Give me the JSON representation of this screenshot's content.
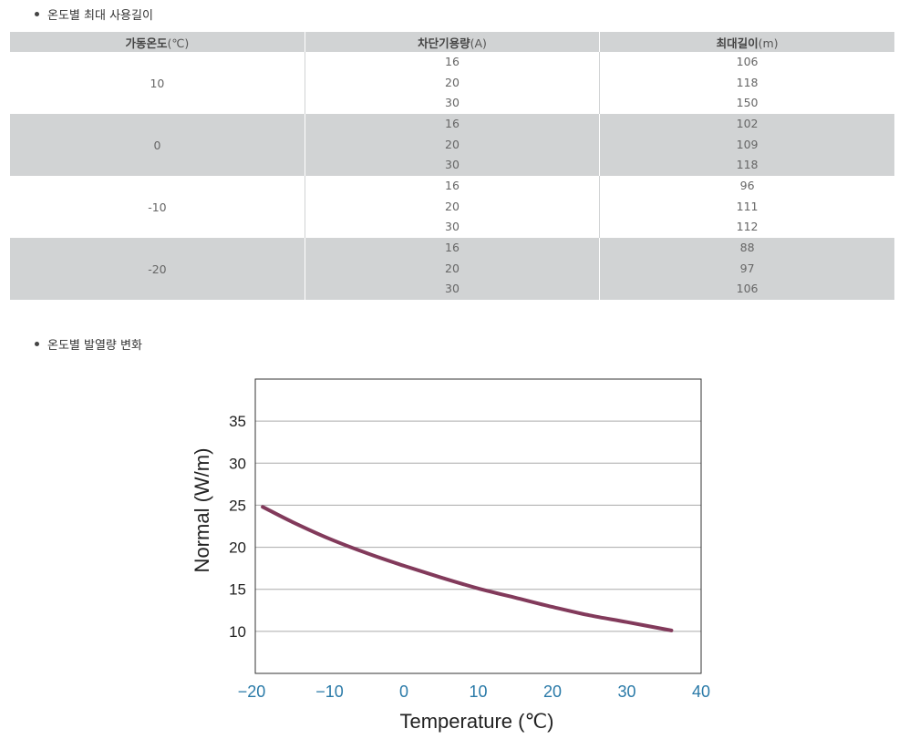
{
  "table_section": {
    "title": "온도별 최대 사용길이",
    "headers": [
      {
        "label": "가동온도",
        "unit": "(℃)"
      },
      {
        "label": "차단기용량",
        "unit": "(A)"
      },
      {
        "label": "최대길이",
        "unit": "(m)"
      }
    ],
    "groups": [
      {
        "temp": "10",
        "capacities": [
          "16",
          "20",
          "30"
        ],
        "lengths": [
          "106",
          "118",
          "150"
        ]
      },
      {
        "temp": "0",
        "capacities": [
          "16",
          "20",
          "30"
        ],
        "lengths": [
          "102",
          "109",
          "118"
        ]
      },
      {
        "temp": "-10",
        "capacities": [
          "16",
          "20",
          "30"
        ],
        "lengths": [
          "96",
          "111",
          "112"
        ]
      },
      {
        "temp": "-20",
        "capacities": [
          "16",
          "20",
          "30"
        ],
        "lengths": [
          "88",
          "97",
          "106"
        ]
      }
    ]
  },
  "chart_section": {
    "title": "온도별 발열량 변화"
  },
  "chart_data": {
    "type": "line",
    "title": "",
    "xlabel": "Temperature (℃)",
    "ylabel": "Normal (W/m)",
    "xlim": [
      -20,
      40
    ],
    "ylim": [
      5,
      40
    ],
    "xticks": [
      "−20",
      "−10",
      "0",
      "10",
      "20",
      "30",
      "40"
    ],
    "yticks": [
      "10",
      "15",
      "20",
      "25",
      "30",
      "35"
    ],
    "grid": "horizontal",
    "series": [
      {
        "x": [
          -19,
          -15,
          -10,
          -5,
          0,
          5,
          10,
          15,
          20,
          25,
          30,
          36
        ],
        "y": [
          24.8,
          23.0,
          21.0,
          19.3,
          17.8,
          16.4,
          15.1,
          14.0,
          12.9,
          11.9,
          11.1,
          10.1
        ]
      }
    ],
    "colors": {
      "line": "#823a5b",
      "tick": "#2a7aa8",
      "grid": "#aaaaaa",
      "frame": "#333333"
    }
  }
}
